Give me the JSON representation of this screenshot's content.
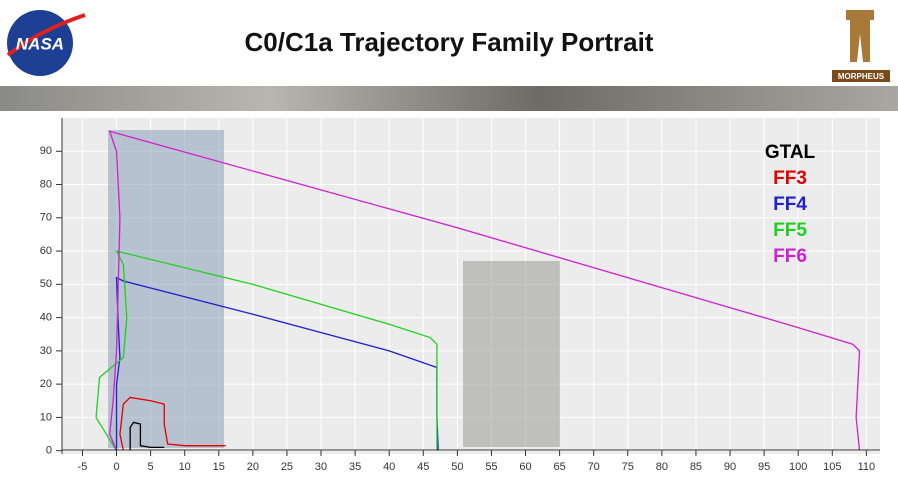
{
  "header": {
    "title": "C0/C1a Trajectory Family Portrait",
    "left_logo": "NASA",
    "right_logo": "MORPHEUS"
  },
  "chart_data": {
    "type": "line",
    "xlim": [
      -8,
      112
    ],
    "ylim": [
      -1,
      100
    ],
    "xticks": [
      -5,
      0,
      5,
      10,
      15,
      20,
      25,
      30,
      35,
      40,
      45,
      50,
      55,
      60,
      65,
      70,
      75,
      80,
      85,
      90,
      95,
      100,
      105,
      110
    ],
    "yticks": [
      0,
      10,
      20,
      30,
      40,
      50,
      60,
      70,
      80,
      90
    ],
    "grid": true,
    "legend": "upper right",
    "series": [
      {
        "name": "GTAL",
        "color": "#000000",
        "x": [
          2,
          2,
          2.5,
          3.5,
          3.5,
          3.5,
          5,
          7
        ],
        "values": [
          0,
          7,
          8.5,
          8,
          5,
          1.5,
          1,
          1
        ]
      },
      {
        "name": "FF3",
        "color": "#e00000",
        "x": [
          1,
          0.5,
          1,
          2,
          5,
          7,
          7,
          7.5,
          10,
          16
        ],
        "values": [
          0,
          5,
          14,
          16,
          15,
          14,
          8,
          2,
          1.5,
          1.5
        ]
      },
      {
        "name": "FF4",
        "color": "#2020d0",
        "x": [
          0,
          0,
          0.5,
          0.2,
          0,
          1,
          20,
          40,
          47,
          47,
          47.2
        ],
        "values": [
          0,
          20,
          28,
          40,
          52,
          51,
          41,
          30,
          25,
          10,
          0
        ]
      },
      {
        "name": "FF5",
        "color": "#20d020",
        "x": [
          0,
          -3,
          -2.5,
          1,
          1.5,
          1,
          0,
          20,
          40,
          46,
          47,
          47
        ],
        "values": [
          0,
          10,
          22,
          28,
          40,
          56,
          60,
          50,
          38,
          34,
          32,
          0
        ]
      },
      {
        "name": "FF6",
        "color": "#d020d0",
        "x": [
          0,
          -1,
          -0.5,
          0,
          0.5,
          0,
          -1,
          50,
          100,
          108,
          109,
          108.5,
          109
        ],
        "values": [
          0,
          5,
          15,
          30,
          70,
          90,
          96,
          67,
          37,
          32,
          30,
          10,
          0
        ]
      }
    ]
  }
}
